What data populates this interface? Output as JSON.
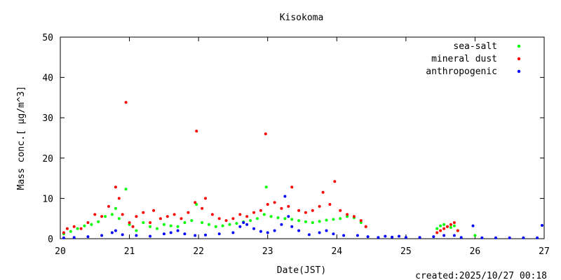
{
  "chart_data": {
    "type": "scatter",
    "title": "Kisokoma",
    "xlabel": "Date(JST)",
    "ylabel": "Mass conc.[ μg/m^3]",
    "footer": "created:2025/10/27 00:18",
    "xlim": [
      20,
      27
    ],
    "ylim": [
      0,
      50
    ],
    "x_ticks": [
      20,
      21,
      22,
      23,
      24,
      25,
      26,
      27
    ],
    "x_tick_labels": [
      "20",
      "21",
      "22",
      "23",
      "24",
      "25",
      "26",
      "27"
    ],
    "y_ticks": [
      0,
      10,
      20,
      30,
      40,
      50
    ],
    "y_tick_labels": [
      "0",
      "10",
      "20",
      "30",
      "40",
      "50"
    ],
    "grid": false,
    "legend_position": "top-right",
    "series": [
      {
        "name": "sea-salt",
        "color": "#00ff00",
        "points": [
          [
            20.05,
            1.2
          ],
          [
            20.15,
            1.8
          ],
          [
            20.25,
            2.5
          ],
          [
            20.35,
            3.2
          ],
          [
            20.45,
            3.5
          ],
          [
            20.55,
            4.2
          ],
          [
            20.65,
            5.5
          ],
          [
            20.75,
            6.0
          ],
          [
            20.8,
            7.5
          ],
          [
            20.85,
            5.0
          ],
          [
            20.95,
            12.3
          ],
          [
            21.0,
            3.5
          ],
          [
            21.1,
            2.0
          ],
          [
            21.2,
            4.0
          ],
          [
            21.3,
            3.0
          ],
          [
            21.4,
            2.5
          ],
          [
            21.5,
            3.5
          ],
          [
            21.6,
            3.2
          ],
          [
            21.7,
            3.0
          ],
          [
            21.8,
            4.0
          ],
          [
            21.9,
            4.5
          ],
          [
            21.97,
            8.5
          ],
          [
            22.05,
            4.0
          ],
          [
            22.15,
            3.5
          ],
          [
            22.25,
            3.0
          ],
          [
            22.35,
            3.2
          ],
          [
            22.45,
            3.5
          ],
          [
            22.55,
            3.8
          ],
          [
            22.65,
            4.2
          ],
          [
            22.75,
            4.5
          ],
          [
            22.85,
            5.0
          ],
          [
            22.95,
            6.0
          ],
          [
            22.98,
            12.8
          ],
          [
            23.05,
            5.5
          ],
          [
            23.15,
            5.2
          ],
          [
            23.25,
            5.0
          ],
          [
            23.35,
            4.8
          ],
          [
            23.45,
            4.5
          ],
          [
            23.55,
            4.2
          ],
          [
            23.65,
            4.0
          ],
          [
            23.75,
            4.3
          ],
          [
            23.85,
            4.6
          ],
          [
            23.95,
            4.8
          ],
          [
            24.05,
            5.0
          ],
          [
            24.15,
            5.5
          ],
          [
            24.25,
            5.2
          ],
          [
            24.35,
            4.0
          ],
          [
            24.42,
            3.0
          ],
          [
            25.45,
            2.5
          ],
          [
            25.5,
            3.2
          ],
          [
            25.55,
            3.5
          ],
          [
            25.6,
            3.0
          ],
          [
            25.65,
            2.8
          ],
          [
            25.7,
            3.2
          ],
          [
            25.75,
            2.0
          ],
          [
            26.0,
            0.8
          ]
        ]
      },
      {
        "name": "mineral dust",
        "color": "#ff0000",
        "points": [
          [
            20.05,
            1.5
          ],
          [
            20.1,
            2.5
          ],
          [
            20.2,
            3.0
          ],
          [
            20.3,
            2.5
          ],
          [
            20.4,
            4.0
          ],
          [
            20.5,
            6.0
          ],
          [
            20.6,
            5.5
          ],
          [
            20.7,
            8.0
          ],
          [
            20.8,
            12.8
          ],
          [
            20.85,
            10.0
          ],
          [
            20.9,
            6.0
          ],
          [
            20.95,
            33.8
          ],
          [
            21.0,
            4.0
          ],
          [
            21.05,
            3.0
          ],
          [
            21.1,
            5.5
          ],
          [
            21.2,
            6.5
          ],
          [
            21.3,
            4.0
          ],
          [
            21.35,
            7.0
          ],
          [
            21.45,
            5.0
          ],
          [
            21.55,
            5.5
          ],
          [
            21.65,
            6.0
          ],
          [
            21.75,
            5.0
          ],
          [
            21.85,
            6.5
          ],
          [
            21.95,
            9.0
          ],
          [
            21.97,
            26.7
          ],
          [
            22.05,
            7.5
          ],
          [
            22.1,
            10.0
          ],
          [
            22.2,
            6.0
          ],
          [
            22.3,
            5.0
          ],
          [
            22.4,
            4.5
          ],
          [
            22.5,
            5.0
          ],
          [
            22.6,
            6.0
          ],
          [
            22.7,
            5.5
          ],
          [
            22.8,
            6.5
          ],
          [
            22.9,
            7.0
          ],
          [
            22.97,
            26.0
          ],
          [
            23.0,
            8.5
          ],
          [
            23.1,
            9.0
          ],
          [
            23.2,
            7.5
          ],
          [
            23.3,
            8.0
          ],
          [
            23.35,
            12.8
          ],
          [
            23.45,
            7.0
          ],
          [
            23.55,
            6.5
          ],
          [
            23.65,
            7.0
          ],
          [
            23.75,
            8.0
          ],
          [
            23.8,
            11.5
          ],
          [
            23.9,
            8.5
          ],
          [
            23.97,
            14.2
          ],
          [
            24.05,
            7.0
          ],
          [
            24.15,
            6.0
          ],
          [
            24.25,
            5.5
          ],
          [
            24.35,
            4.5
          ],
          [
            24.42,
            3.0
          ],
          [
            25.45,
            1.5
          ],
          [
            25.5,
            2.0
          ],
          [
            25.55,
            2.5
          ],
          [
            25.6,
            3.0
          ],
          [
            25.65,
            3.5
          ],
          [
            25.7,
            4.0
          ],
          [
            25.75,
            2.0
          ]
        ]
      },
      {
        "name": "anthropogenic",
        "color": "#0000ff",
        "points": [
          [
            20.05,
            0.2
          ],
          [
            20.2,
            0.3
          ],
          [
            20.4,
            0.5
          ],
          [
            20.6,
            0.8
          ],
          [
            20.75,
            1.5
          ],
          [
            20.8,
            2.0
          ],
          [
            20.9,
            1.0
          ],
          [
            21.1,
            0.8
          ],
          [
            21.3,
            0.6
          ],
          [
            21.5,
            1.2
          ],
          [
            21.6,
            1.5
          ],
          [
            21.7,
            2.0
          ],
          [
            21.8,
            1.2
          ],
          [
            21.95,
            0.8
          ],
          [
            22.1,
            0.9
          ],
          [
            22.3,
            1.2
          ],
          [
            22.5,
            1.5
          ],
          [
            22.6,
            3.0
          ],
          [
            22.65,
            4.0
          ],
          [
            22.7,
            3.5
          ],
          [
            22.8,
            2.5
          ],
          [
            22.9,
            1.8
          ],
          [
            23.0,
            1.5
          ],
          [
            23.1,
            2.0
          ],
          [
            23.2,
            3.5
          ],
          [
            23.25,
            10.5
          ],
          [
            23.3,
            5.5
          ],
          [
            23.35,
            3.0
          ],
          [
            23.45,
            2.0
          ],
          [
            23.6,
            1.0
          ],
          [
            23.75,
            1.5
          ],
          [
            23.85,
            2.0
          ],
          [
            23.95,
            1.2
          ],
          [
            24.1,
            0.8
          ],
          [
            24.3,
            0.8
          ],
          [
            24.45,
            0.5
          ],
          [
            24.6,
            0.3
          ],
          [
            24.7,
            0.6
          ],
          [
            24.8,
            0.4
          ],
          [
            24.9,
            0.6
          ],
          [
            25.0,
            0.3
          ],
          [
            25.2,
            0.3
          ],
          [
            25.4,
            0.5
          ],
          [
            25.55,
            0.8
          ],
          [
            25.7,
            0.8
          ],
          [
            25.8,
            0.3
          ],
          [
            25.97,
            3.2
          ],
          [
            26.1,
            0.2
          ],
          [
            26.3,
            0.2
          ],
          [
            26.5,
            0.2
          ],
          [
            26.7,
            0.2
          ],
          [
            26.9,
            0.2
          ],
          [
            26.97,
            3.3
          ]
        ]
      }
    ]
  }
}
